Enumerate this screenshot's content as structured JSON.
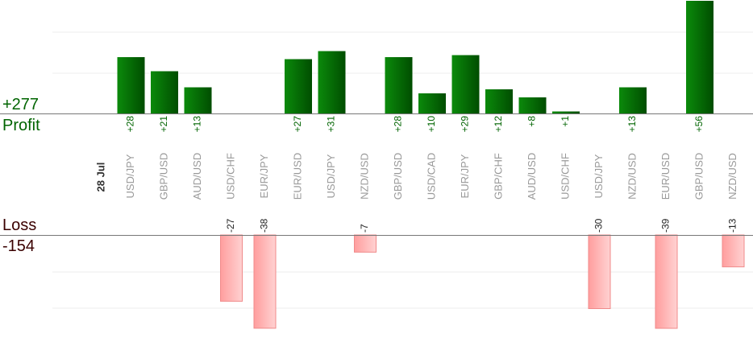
{
  "summary": {
    "profit_total": "+277",
    "profit_label": "Profit",
    "loss_label": "Loss",
    "loss_total": "-154"
  },
  "colors": {
    "profit_bar": "#0a7a0a",
    "loss_bar": "#ffaaaa",
    "profit_text": "#006400",
    "loss_text": "#3a0000"
  },
  "chart_data": {
    "type": "bar",
    "date_label": "28 Jul",
    "categories": [
      "USD/JPY",
      "GBP/USD",
      "AUD/USD",
      "USD/CHF",
      "EUR/JPY",
      "EUR/USD",
      "USD/JPY",
      "NZD/USD",
      "GBP/USD",
      "USD/CAD",
      "EUR/JPY",
      "GBP/CHF",
      "AUD/USD",
      "USD/CHF",
      "USD/JPY",
      "NZD/USD",
      "EUR/USD",
      "GBP/USD",
      "NZD/USD"
    ],
    "values": [
      28,
      21,
      13,
      -27,
      -38,
      27,
      31,
      -7,
      28,
      10,
      29,
      12,
      8,
      1,
      -30,
      13,
      -39,
      56,
      -13
    ],
    "value_labels": [
      "+28",
      "+21",
      "+13",
      "-27",
      "-38",
      "+27",
      "+31",
      "-7",
      "+28",
      "+10",
      "+29",
      "+12",
      "+8",
      "+1",
      "-30",
      "+13",
      "-39",
      "+56",
      "-13"
    ],
    "series": [
      {
        "values": [
          28,
          21,
          13,
          null,
          null,
          27,
          31,
          null,
          28,
          10,
          29,
          12,
          8,
          1,
          null,
          13,
          null,
          56,
          null
        ]
      },
      {
        "values": [
          null,
          null,
          null,
          -27,
          -38,
          null,
          null,
          -7,
          null,
          null,
          null,
          null,
          null,
          null,
          -30,
          null,
          -39,
          null,
          -13
        ]
      }
    ],
    "grid": true,
    "legend": "none"
  }
}
